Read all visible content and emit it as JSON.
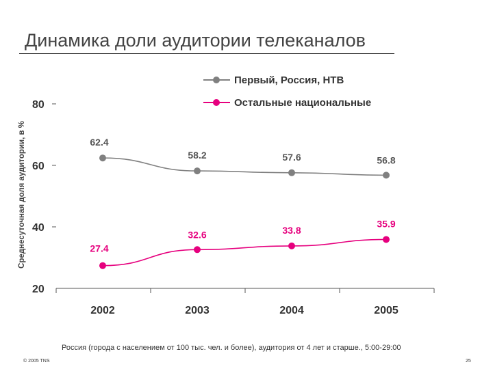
{
  "page": {
    "title": "Динамика доли аудитории телеканалов",
    "footnote": "Россия (города с населением от 100 тыс. чел. и более), аудитория от 4 лет и старше., 5:00-29:00",
    "copyright": "© 2005 TNS",
    "page_number": "25"
  },
  "chart_data": {
    "type": "line",
    "categories": [
      "2002",
      "2003",
      "2004",
      "2005"
    ],
    "ylabel": "Среднесуточная доля аудитории, в %",
    "ylim": [
      20,
      80
    ],
    "yticks": [
      "20",
      "40",
      "60",
      "80"
    ],
    "legend_position": "top-right",
    "grid": false,
    "series": [
      {
        "name": "Первый, Россия, НТВ",
        "values": [
          62.4,
          58.2,
          57.6,
          56.8
        ],
        "labels": [
          "62.4",
          "58.2",
          "57.6",
          "56.8"
        ],
        "color": "#808080"
      },
      {
        "name": "Остальные национальные",
        "values": [
          27.4,
          32.6,
          33.8,
          35.9
        ],
        "labels": [
          "27.4",
          "32.6",
          "33.8",
          "35.9"
        ],
        "color": "#e6007e"
      }
    ]
  }
}
